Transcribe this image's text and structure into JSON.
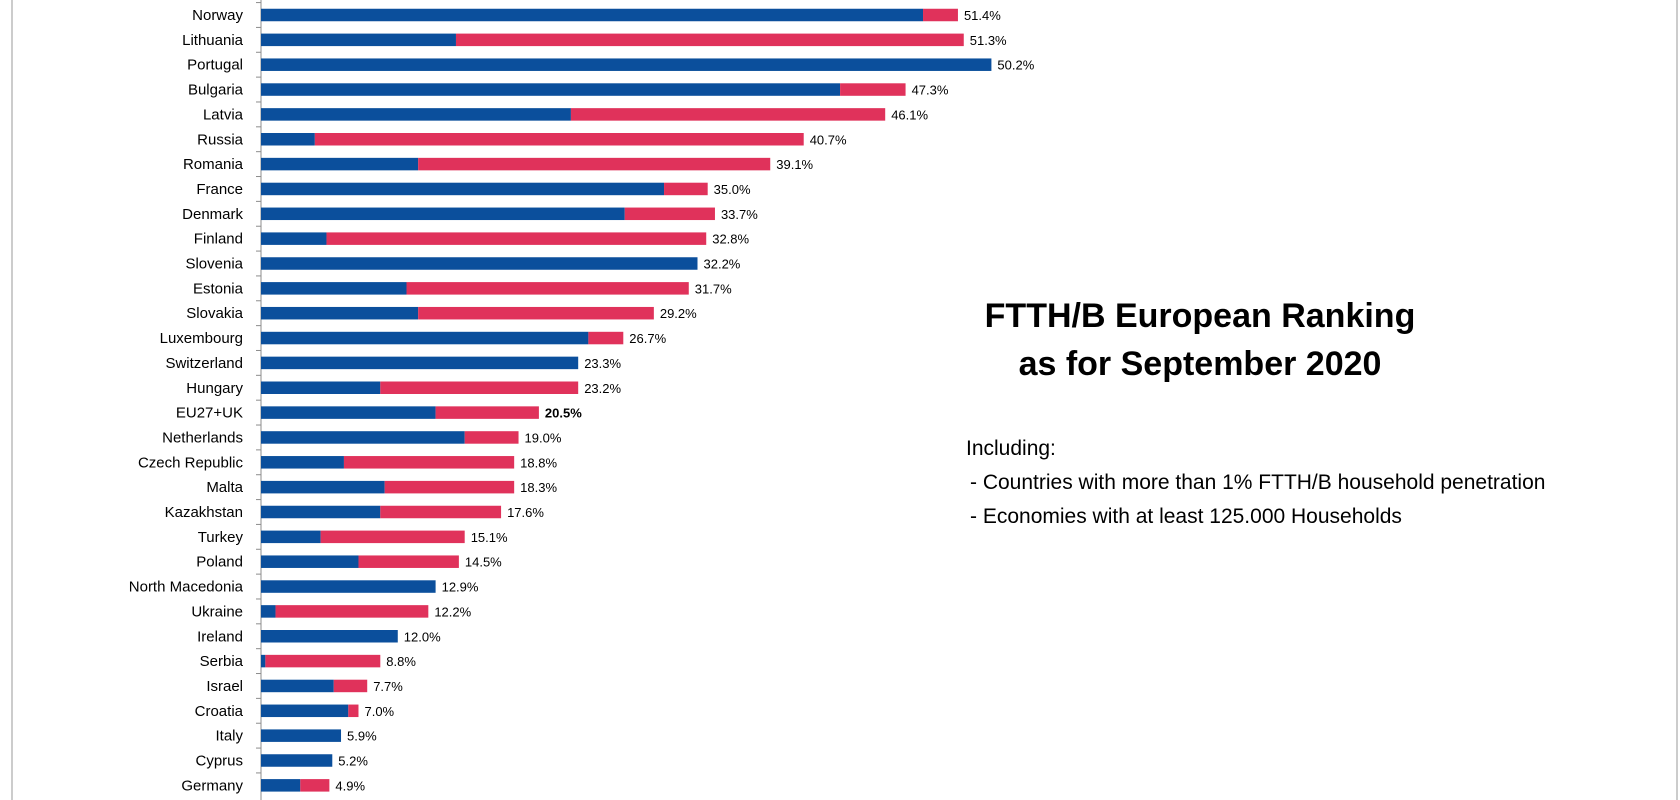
{
  "chart_data": {
    "type": "bar",
    "orientation": "horizontal",
    "stacked": true,
    "title": "FTTH/B European Ranking",
    "subtitle": "as for September 2020",
    "notes": {
      "heading": "Including:",
      "items": [
        "- Countries with more than 1% FTTH/B household penetration",
        "- Economies with at least 125.000 Households"
      ]
    },
    "series_colors": [
      "#0b4f9c",
      "#e0325b"
    ],
    "grid": false,
    "categories": [
      "Norway",
      "Lithuania",
      "Portugal",
      "Bulgaria",
      "Latvia",
      "Russia",
      "Romania",
      "France",
      "Denmark",
      "Finland",
      "Slovenia",
      "Estonia",
      "Slovakia",
      "Luxembourg",
      "Switzerland",
      "Hungary",
      "EU27+UK",
      "Netherlands",
      "Czech Republic",
      "Malta",
      "Kazakhstan",
      "Turkey",
      "Poland",
      "North Macedonia",
      "Ukraine",
      "Ireland",
      "Serbia",
      "Israel",
      "Croatia",
      "Italy",
      "Cyprus",
      "Germany"
    ],
    "series": [
      {
        "values": [
          45.5,
          13.4,
          50.2,
          39.8,
          21.3,
          3.7,
          10.8,
          27.7,
          25.0,
          4.5,
          30.0,
          10.0,
          10.8,
          22.5,
          21.8,
          8.2,
          12.0,
          14.0,
          5.7,
          8.5,
          8.2,
          4.1,
          6.7,
          12.0,
          1.0,
          9.4,
          0.3,
          5.0,
          6.0,
          5.5,
          4.9,
          2.7
        ]
      },
      {
        "values": [
          2.4,
          34.9,
          0.0,
          4.5,
          21.6,
          33.6,
          24.2,
          3.0,
          6.2,
          26.1,
          0.0,
          19.4,
          16.2,
          2.4,
          0.0,
          13.6,
          7.1,
          3.7,
          11.7,
          8.9,
          8.3,
          9.9,
          6.9,
          0.0,
          10.5,
          0.0,
          7.9,
          2.3,
          0.7,
          0.0,
          0.0,
          2.0
        ]
      }
    ],
    "labels": [
      "51.4%",
      "51.3%",
      "50.2%",
      "47.3%",
      "46.1%",
      "40.7%",
      "39.1%",
      "35.0%",
      "33.7%",
      "32.8%",
      "32.2%",
      "31.7%",
      "29.2%",
      "26.7%",
      "23.3%",
      "23.2%",
      "20.5%",
      "19.0%",
      "18.8%",
      "18.3%",
      "17.6%",
      "15.1%",
      "14.5%",
      "12.9%",
      "12.2%",
      "12.0%",
      "8.8%",
      "7.7%",
      "7.0%",
      "5.9%",
      "5.2%",
      "4.9%"
    ],
    "highlight": "EU27+UK"
  }
}
